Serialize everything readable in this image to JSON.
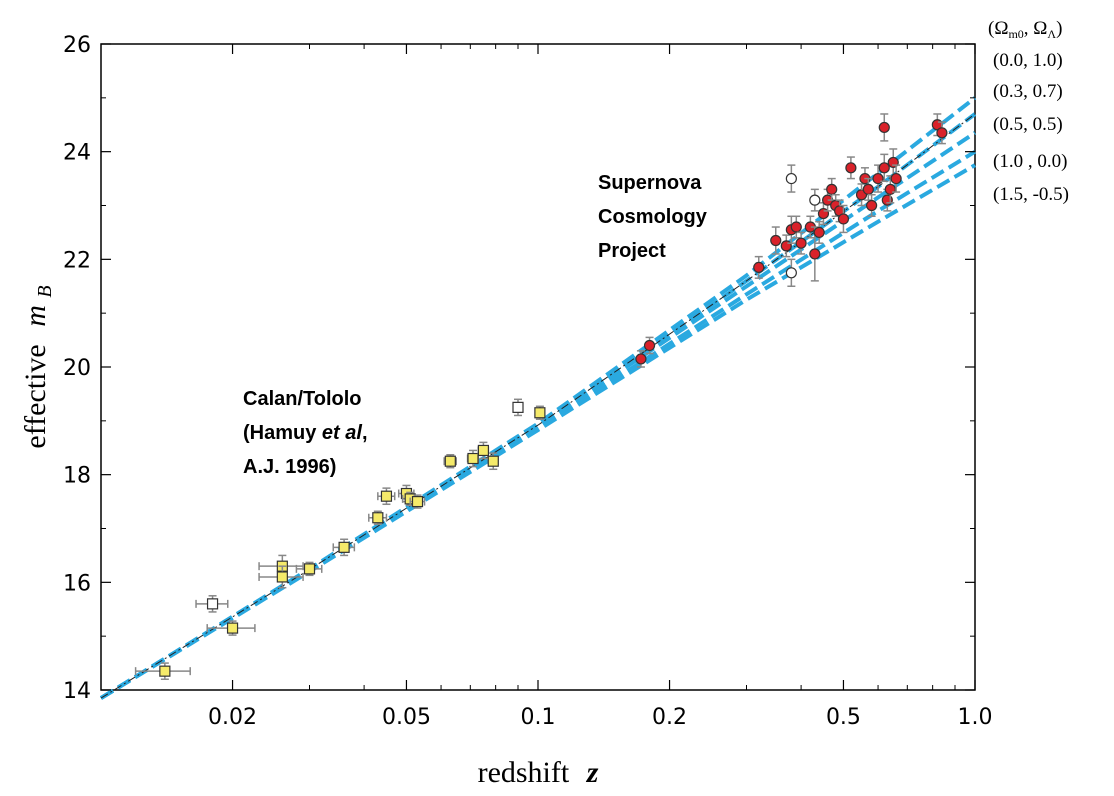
{
  "chart_data": {
    "type": "scatter",
    "xscale": "log",
    "xlim": [
      0.01,
      1.0
    ],
    "ylim": [
      14,
      26
    ],
    "xlabel_prefix": "redshift",
    "xlabel_symbol": "z",
    "ylabel_prefix": "effective",
    "ylabel_symbol": "m",
    "ylabel_subscript": "B",
    "x_ticks": [
      {
        "value": 0.02,
        "label": "0.02"
      },
      {
        "value": 0.05,
        "label": "0.05"
      },
      {
        "value": 0.1,
        "label": "0.1"
      },
      {
        "value": 0.2,
        "label": "0.2"
      },
      {
        "value": 0.5,
        "label": "0.5"
      },
      {
        "value": 1.0,
        "label": "1.0"
      }
    ],
    "y_ticks": [
      {
        "value": 14,
        "label": "14"
      },
      {
        "value": 16,
        "label": "16"
      },
      {
        "value": 18,
        "label": "18"
      },
      {
        "value": 20,
        "label": "20"
      },
      {
        "value": 22,
        "label": "22"
      },
      {
        "value": 24,
        "label": "24"
      },
      {
        "value": 26,
        "label": "26"
      }
    ],
    "annotations": {
      "calan": [
        "Calan/Tololo",
        "(Hamuy ",
        "et al",
        ",",
        "A.J. 1996)"
      ],
      "scp": [
        "Supernova",
        "Cosmology",
        "Project"
      ]
    },
    "legend": {
      "header": "(Ω",
      "header_sub1": "m0",
      "header_mid": ", Ω",
      "header_sub2": "Λ",
      "header_end": ")",
      "entries": [
        "(0.0,  1.0)",
        "(0.3,  0.7)",
        "(0.5,  0.5)",
        "(1.0 , 0.0)",
        "(1.5, -0.5)"
      ]
    },
    "models": [
      {
        "omega_m": 0.0,
        "omega_l": 1.0,
        "values": [
          [
            0.01,
            13.85
          ],
          [
            0.03,
            16.25
          ],
          [
            0.1,
            18.95
          ],
          [
            0.3,
            21.7
          ],
          [
            0.6,
            23.6
          ],
          [
            1.0,
            25.0
          ]
        ]
      },
      {
        "omega_m": 0.3,
        "omega_l": 0.7,
        "values": [
          [
            0.01,
            13.85
          ],
          [
            0.03,
            16.24
          ],
          [
            0.1,
            18.92
          ],
          [
            0.3,
            21.6
          ],
          [
            0.6,
            23.35
          ],
          [
            1.0,
            24.7
          ]
        ]
      },
      {
        "omega_m": 0.5,
        "omega_l": 0.5,
        "values": [
          [
            0.01,
            13.85
          ],
          [
            0.03,
            16.23
          ],
          [
            0.1,
            18.9
          ],
          [
            0.3,
            21.5
          ],
          [
            0.6,
            23.15
          ],
          [
            1.0,
            24.35
          ]
        ]
      },
      {
        "omega_m": 1.0,
        "omega_l": 0.0,
        "values": [
          [
            0.01,
            13.85
          ],
          [
            0.03,
            16.22
          ],
          [
            0.1,
            18.86
          ],
          [
            0.3,
            21.35
          ],
          [
            0.6,
            22.9
          ],
          [
            1.0,
            24.0
          ]
        ]
      },
      {
        "omega_m": 1.5,
        "omega_l": -0.5,
        "values": [
          [
            0.01,
            13.85
          ],
          [
            0.03,
            16.2
          ],
          [
            0.1,
            18.83
          ],
          [
            0.3,
            21.25
          ],
          [
            0.6,
            22.7
          ],
          [
            1.0,
            23.75
          ]
        ]
      }
    ],
    "line_color": "#2aa9e0",
    "calan_points": [
      {
        "x": 0.014,
        "y": 14.35,
        "xerr": 0.002,
        "yerr": 0.15
      },
      {
        "x": 0.018,
        "y": 15.6,
        "xerr": 0.0015,
        "yerr": 0.15,
        "open": true
      },
      {
        "x": 0.02,
        "y": 15.15,
        "xerr": 0.0025,
        "yerr": 0.13
      },
      {
        "x": 0.026,
        "y": 16.3,
        "xerr": 0.003,
        "yerr": 0.2
      },
      {
        "x": 0.026,
        "y": 16.1,
        "xerr": 0.003,
        "yerr": 0.2
      },
      {
        "x": 0.03,
        "y": 16.25,
        "xerr": 0.002,
        "yerr": 0.12
      },
      {
        "x": 0.036,
        "y": 16.65,
        "xerr": 0.002,
        "yerr": 0.15
      },
      {
        "x": 0.043,
        "y": 17.2,
        "xerr": 0.002,
        "yerr": 0.12
      },
      {
        "x": 0.045,
        "y": 17.6,
        "xerr": 0.002,
        "yerr": 0.15
      },
      {
        "x": 0.05,
        "y": 17.65,
        "xerr": 0.002,
        "yerr": 0.15
      },
      {
        "x": 0.051,
        "y": 17.55,
        "xerr": 0.002,
        "yerr": 0.12
      },
      {
        "x": 0.053,
        "y": 17.5,
        "xerr": 0.002,
        "yerr": 0.12
      },
      {
        "x": 0.063,
        "y": 18.25,
        "xerr": 0.002,
        "yerr": 0.12
      },
      {
        "x": 0.071,
        "y": 18.3,
        "xerr": 0.002,
        "yerr": 0.15
      },
      {
        "x": 0.075,
        "y": 18.45,
        "xerr": 0.002,
        "yerr": 0.15
      },
      {
        "x": 0.079,
        "y": 18.25,
        "xerr": 0.002,
        "yerr": 0.15
      },
      {
        "x": 0.09,
        "y": 19.25,
        "xerr": 0.002,
        "yerr": 0.15,
        "open": true
      },
      {
        "x": 0.101,
        "y": 19.15,
        "xerr": 0.002,
        "yerr": 0.12
      }
    ],
    "scp_points": [
      {
        "x": 0.172,
        "y": 20.15,
        "yerr": 0.15
      },
      {
        "x": 0.18,
        "y": 20.4,
        "yerr": 0.15
      },
      {
        "x": 0.32,
        "y": 21.85,
        "yerr": 0.2
      },
      {
        "x": 0.35,
        "y": 22.35,
        "yerr": 0.25
      },
      {
        "x": 0.37,
        "y": 22.25,
        "yerr": 0.2
      },
      {
        "x": 0.38,
        "y": 22.55,
        "yerr": 0.25
      },
      {
        "x": 0.39,
        "y": 22.6,
        "yerr": 0.2
      },
      {
        "x": 0.4,
        "y": 22.3,
        "yerr": 0.2
      },
      {
        "x": 0.42,
        "y": 22.6,
        "yerr": 0.2
      },
      {
        "x": 0.43,
        "y": 22.1,
        "yerr": 0.5
      },
      {
        "x": 0.44,
        "y": 22.5,
        "yerr": 0.2
      },
      {
        "x": 0.45,
        "y": 22.85,
        "yerr": 0.2
      },
      {
        "x": 0.46,
        "y": 23.1,
        "yerr": 0.2
      },
      {
        "x": 0.47,
        "y": 23.3,
        "yerr": 0.2
      },
      {
        "x": 0.48,
        "y": 23.0,
        "yerr": 0.2
      },
      {
        "x": 0.49,
        "y": 22.9,
        "yerr": 0.2
      },
      {
        "x": 0.5,
        "y": 22.75,
        "yerr": 0.25
      },
      {
        "x": 0.52,
        "y": 23.7,
        "yerr": 0.2
      },
      {
        "x": 0.55,
        "y": 23.2,
        "yerr": 0.2
      },
      {
        "x": 0.56,
        "y": 23.5,
        "yerr": 0.2
      },
      {
        "x": 0.57,
        "y": 23.3,
        "yerr": 0.2
      },
      {
        "x": 0.58,
        "y": 23.0,
        "yerr": 0.2
      },
      {
        "x": 0.6,
        "y": 23.5,
        "yerr": 0.25
      },
      {
        "x": 0.62,
        "y": 23.7,
        "yerr": 0.25
      },
      {
        "x": 0.63,
        "y": 23.1,
        "yerr": 0.2
      },
      {
        "x": 0.64,
        "y": 23.3,
        "yerr": 0.25
      },
      {
        "x": 0.65,
        "y": 23.8,
        "yerr": 0.25
      },
      {
        "x": 0.66,
        "y": 23.5,
        "yerr": 0.25
      },
      {
        "x": 0.62,
        "y": 24.45,
        "yerr": 0.25
      },
      {
        "x": 0.82,
        "y": 24.5,
        "yerr": 0.2
      },
      {
        "x": 0.84,
        "y": 24.35,
        "yerr": 0.2
      },
      {
        "x": 0.38,
        "y": 23.5,
        "yerr": 0.25,
        "open": true
      },
      {
        "x": 0.38,
        "y": 21.75,
        "yerr": 0.25,
        "open": true
      },
      {
        "x": 0.43,
        "y": 23.1,
        "yerr": 0.2,
        "open": true
      }
    ],
    "colors": {
      "calan_fill": "#f5ea6a",
      "scp_fill": "#d9222a",
      "open_fill": "#ffffff",
      "errorbar": "#888888",
      "marker_stroke": "#333333",
      "black_dashdot": "#222222"
    }
  }
}
